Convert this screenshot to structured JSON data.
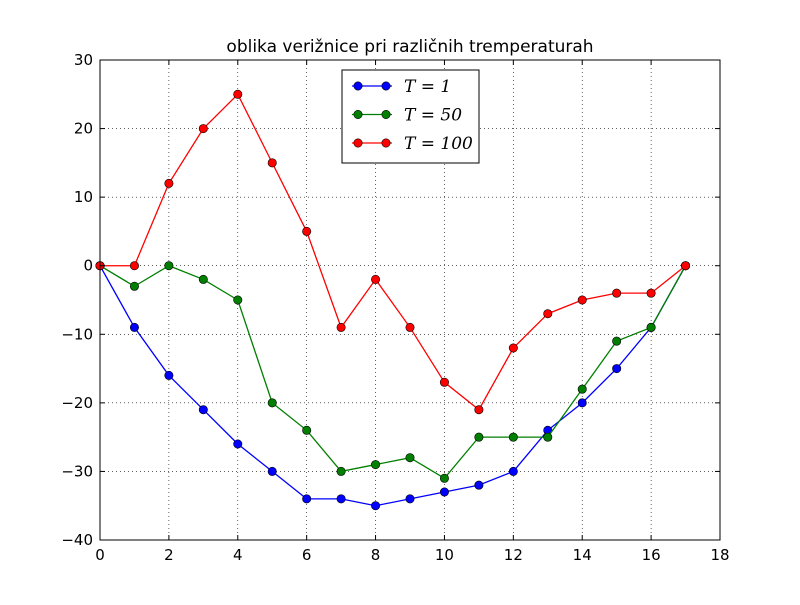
{
  "chart_data": {
    "type": "line",
    "title": "oblika verižnice pri različnih tremperaturah",
    "xlabel": "",
    "ylabel": "",
    "xlim": [
      0,
      18
    ],
    "ylim": [
      -40,
      30
    ],
    "xticks": [
      0,
      2,
      4,
      6,
      8,
      10,
      12,
      14,
      16,
      18
    ],
    "yticks": [
      -40,
      -30,
      -20,
      -10,
      0,
      10,
      20,
      30
    ],
    "x": [
      0,
      1,
      2,
      3,
      4,
      5,
      6,
      7,
      8,
      9,
      10,
      11,
      12,
      13,
      14,
      15,
      16,
      17
    ],
    "grid": true,
    "legend_position": "top-center",
    "series": [
      {
        "name": "T = 1",
        "color": "#0000ff",
        "values": [
          0,
          -9,
          -16,
          -21,
          -26,
          -30,
          -34,
          -34,
          -35,
          -34,
          -33,
          -32,
          -30,
          -24,
          -20,
          -15,
          -9,
          0
        ]
      },
      {
        "name": "T = 50",
        "color": "#007f00",
        "values": [
          0,
          -3,
          0,
          -2,
          -5,
          -20,
          -24,
          -30,
          -29,
          -28,
          -31,
          -25,
          -25,
          -25,
          -18,
          -11,
          -9,
          0
        ]
      },
      {
        "name": "T = 100",
        "color": "#ff0000",
        "values": [
          0,
          0,
          12,
          20,
          25,
          15,
          5,
          -9,
          -2,
          -9,
          -17,
          -21,
          -12,
          -7,
          -5,
          -4,
          -4,
          0
        ]
      }
    ]
  }
}
